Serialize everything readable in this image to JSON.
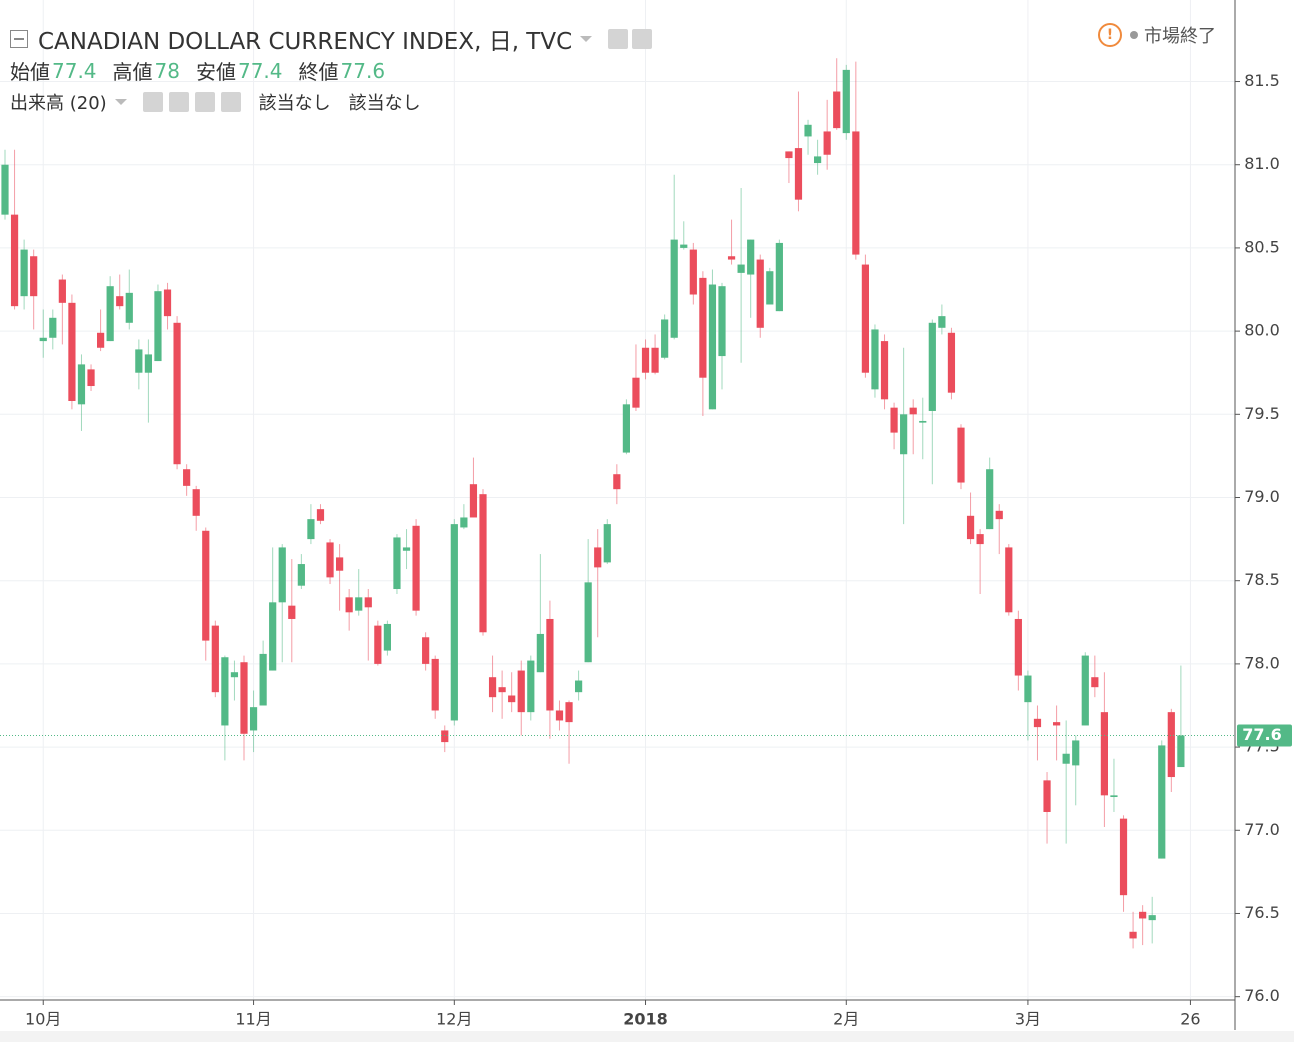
{
  "chart_data": {
    "type": "candlestick",
    "title": "CANADIAN DOLLAR CURRENCY INDEX, 日, TVC",
    "ohlc_legend": [
      {
        "label": "始値",
        "value": 77.4
      },
      {
        "label": "高値",
        "value": 78.0
      },
      {
        "label": "安値",
        "value": 77.4
      },
      {
        "label": "終値",
        "value": 77.6
      }
    ],
    "volume_label": "出来高 (20)",
    "volume_values": [
      "該当なし",
      "該当なし"
    ],
    "status": "市場終了",
    "up_color": "#53b987",
    "down_color": "#eb4d5c",
    "grid": true,
    "ylim": [
      75.98,
      81.99
    ],
    "yticks": [
      {
        "value": 76.0,
        "label": "76.0"
      },
      76.5,
      {
        "value": 77.0,
        "label": "77.0"
      },
      77.5,
      {
        "value": 78.0,
        "label": "78.0"
      },
      78.5,
      {
        "value": 79.0,
        "label": "79.0"
      },
      79.5,
      {
        "value": 80.0,
        "label": "80.0"
      },
      80.5,
      {
        "value": 81.0,
        "label": "81.0"
      },
      81.5
    ],
    "last_price": {
      "value": 77.57,
      "label": "77.6"
    },
    "categories": [
      null,
      null,
      null,
      null,
      "10月",
      null,
      null,
      null,
      null,
      null,
      null,
      null,
      null,
      null,
      null,
      null,
      null,
      null,
      null,
      null,
      null,
      null,
      null,
      null,
      null,
      null,
      "11月",
      null,
      null,
      null,
      null,
      null,
      null,
      null,
      null,
      null,
      null,
      null,
      null,
      null,
      null,
      null,
      null,
      null,
      null,
      null,
      null,
      "12月",
      null,
      null,
      null,
      null,
      null,
      null,
      null,
      null,
      null,
      null,
      null,
      null,
      null,
      null,
      null,
      null,
      null,
      null,
      null,
      "2018",
      null,
      null,
      null,
      null,
      null,
      null,
      null,
      null,
      null,
      null,
      null,
      null,
      null,
      null,
      null,
      null,
      null,
      null,
      null,
      null,
      "2月",
      null,
      null,
      null,
      null,
      null,
      null,
      null,
      null,
      null,
      null,
      null,
      null,
      null,
      null,
      null,
      null,
      null,
      null,
      "3月",
      null,
      null,
      null,
      null,
      null,
      null,
      null,
      null,
      null,
      null,
      null,
      null,
      null,
      null,
      null,
      null,
      "26"
    ],
    "open": [
      80.7,
      80.7,
      80.21,
      80.45,
      79.94,
      79.96,
      80.31,
      80.17,
      79.56,
      79.77,
      79.99,
      79.94,
      80.21,
      80.05,
      79.75,
      79.75,
      79.82,
      80.25,
      80.05,
      79.17,
      79.05,
      78.8,
      78.23,
      77.63,
      77.92,
      78.01,
      77.6,
      77.75,
      77.96,
      78.37,
      78.35,
      78.47,
      78.75,
      78.93,
      78.73,
      78.64,
      78.4,
      78.32,
      78.4,
      78.23,
      78.08,
      78.45,
      78.68,
      78.83,
      78.16,
      78.03,
      77.6,
      77.66,
      78.82,
      79.08,
      79.02,
      77.92,
      77.86,
      77.81,
      77.96,
      77.71,
      77.95,
      78.27,
      77.72,
      77.77,
      77.83,
      78.01,
      78.7,
      78.61,
      79.14,
      79.27,
      79.72,
      79.9,
      79.9,
      79.84,
      79.96,
      80.5,
      80.49,
      80.32,
      79.53,
      79.85,
      80.45,
      80.35,
      80.34,
      80.43,
      80.16,
      80.12,
      81.08,
      81.1,
      81.17,
      81.01,
      81.2,
      81.44,
      81.19,
      81.2,
      80.4,
      79.65,
      79.94,
      79.54,
      79.26,
      79.54,
      79.45,
      79.52,
      80.02,
      79.99,
      79.42,
      78.89,
      78.78,
      78.81,
      78.92,
      78.7,
      78.27,
      77.77,
      77.67,
      77.3,
      77.65,
      77.4,
      77.39,
      77.63,
      77.92,
      77.71,
      77.2,
      77.07,
      76.39,
      76.51,
      76.46,
      76.83,
      77.71,
      77.38,
      null
    ],
    "high": [
      81.09,
      81.09,
      80.55,
      80.49,
      80.13,
      80.13,
      80.34,
      80.22,
      79.86,
      79.8,
      80.13,
      80.33,
      80.34,
      80.37,
      79.95,
      79.95,
      80.28,
      80.29,
      80.09,
      79.2,
      79.07,
      78.82,
      78.26,
      78.05,
      78.02,
      78.05,
      77.84,
      78.14,
      78.7,
      78.72,
      78.63,
      78.66,
      78.96,
      78.96,
      78.75,
      78.72,
      78.45,
      78.57,
      78.45,
      78.26,
      78.26,
      78.78,
      78.81,
      78.87,
      78.19,
      78.05,
      77.63,
      78.87,
      78.96,
      79.24,
      79.05,
      78.05,
      77.96,
      77.95,
      78.02,
      78.05,
      78.66,
      78.38,
      77.78,
      77.78,
      77.96,
      78.75,
      78.81,
      78.87,
      79.2,
      79.59,
      79.92,
      79.95,
      79.98,
      80.1,
      80.94,
      80.66,
      80.53,
      80.36,
      80.37,
      80.29,
      80.67,
      80.86,
      80.55,
      80.46,
      80.38,
      80.55,
      81.08,
      81.44,
      81.27,
      81.15,
      81.39,
      81.64,
      81.6,
      81.62,
      80.46,
      80.04,
      79.98,
      79.57,
      79.9,
      79.59,
      79.6,
      80.07,
      80.16,
      80.02,
      79.44,
      79.03,
      78.81,
      79.24,
      78.96,
      78.72,
      78.32,
      77.96,
      77.75,
      77.35,
      77.75,
      77.66,
      77.57,
      78.07,
      78.05,
      77.95,
      77.43,
      77.09,
      76.51,
      76.55,
      76.6,
      77.54,
      77.73,
      77.99,
      null
    ],
    "low": [
      80.67,
      80.13,
      80.13,
      80.01,
      79.84,
      79.89,
      79.92,
      79.53,
      79.4,
      79.64,
      79.88,
      79.94,
      80.13,
      80.01,
      79.65,
      79.45,
      79.82,
      80.01,
      79.17,
      79.01,
      78.8,
      78.02,
      77.8,
      77.42,
      77.78,
      77.42,
      77.47,
      77.75,
      77.96,
      78.01,
      78.01,
      78.45,
      78.72,
      78.84,
      78.48,
      78.32,
      78.2,
      78.29,
      78.02,
      77.99,
      78.05,
      78.42,
      78.57,
      78.29,
      77.96,
      77.67,
      77.47,
      77.63,
      78.81,
      78.88,
      78.17,
      77.71,
      77.67,
      77.71,
      77.57,
      77.66,
      77.95,
      77.55,
      77.6,
      77.4,
      77.78,
      78.01,
      78.16,
      78.6,
      78.96,
      79.26,
      79.52,
      79.71,
      79.74,
      79.83,
      79.95,
      80.49,
      80.16,
      79.49,
      79.53,
      79.65,
      80.4,
      79.81,
      80.08,
      79.96,
      80.16,
      80.12,
      80.89,
      80.72,
      81.06,
      80.94,
      80.97,
      81.21,
      81.15,
      80.43,
      79.72,
      79.6,
      79.53,
      79.29,
      78.84,
      79.26,
      79.23,
      79.08,
      79.98,
      79.59,
      79.05,
      78.72,
      78.42,
      78.81,
      78.66,
      78.29,
      77.84,
      77.54,
      77.42,
      76.92,
      77.42,
      76.92,
      77.15,
      77.63,
      77.8,
      77.02,
      77.11,
      76.51,
      76.29,
      76.31,
      76.32,
      76.83,
      77.23,
      77.38,
      null
    ],
    "close": [
      81.0,
      80.15,
      80.49,
      80.21,
      79.96,
      80.08,
      80.17,
      79.58,
      79.8,
      79.67,
      79.9,
      80.27,
      80.15,
      80.23,
      79.89,
      79.86,
      80.24,
      80.09,
      79.2,
      79.07,
      78.89,
      78.14,
      77.83,
      78.04,
      77.95,
      77.58,
      77.74,
      78.06,
      78.37,
      78.7,
      78.27,
      78.6,
      78.87,
      78.86,
      78.52,
      78.56,
      78.31,
      78.4,
      78.34,
      78.0,
      78.24,
      78.76,
      78.7,
      78.32,
      78.0,
      77.72,
      77.53,
      78.84,
      78.88,
      78.88,
      78.19,
      77.8,
      77.83,
      77.77,
      77.71,
      78.02,
      78.18,
      77.72,
      77.66,
      77.65,
      77.9,
      78.49,
      78.58,
      78.84,
      79.05,
      79.56,
      79.54,
      79.75,
      79.75,
      80.07,
      80.55,
      80.52,
      80.22,
      79.72,
      80.28,
      80.27,
      80.43,
      80.4,
      80.55,
      80.02,
      80.36,
      80.53,
      81.04,
      80.79,
      81.24,
      81.05,
      81.06,
      81.22,
      81.57,
      80.46,
      79.75,
      80.01,
      79.59,
      79.39,
      79.5,
      79.5,
      79.46,
      80.05,
      80.09,
      79.63,
      79.09,
      78.75,
      78.72,
      79.17,
      78.87,
      78.31,
      77.93,
      77.93,
      77.62,
      77.11,
      77.63,
      77.46,
      77.54,
      78.05,
      77.86,
      77.21,
      77.21,
      76.61,
      76.35,
      76.47,
      76.49,
      77.51,
      77.32,
      77.57,
      null
    ]
  }
}
